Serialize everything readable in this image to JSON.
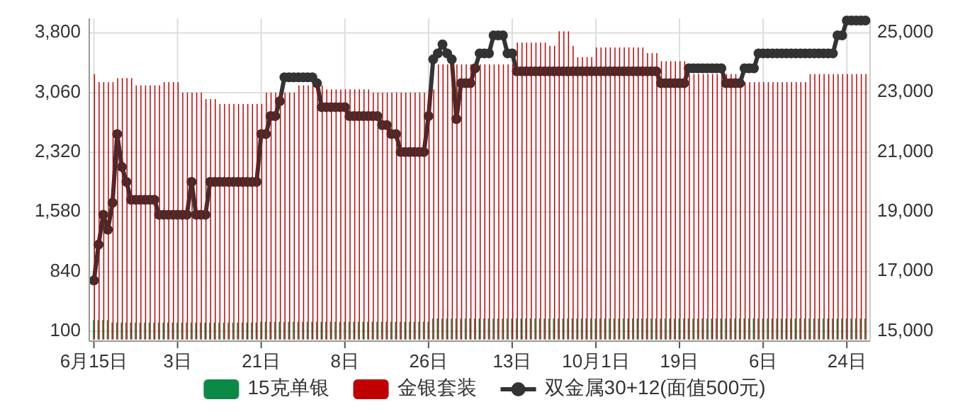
{
  "chart_data": {
    "type": "bar",
    "x": [
      "--06-15",
      "--06-16",
      "--06-17",
      "--06-18",
      "--06-19",
      "--06-20",
      "--06-21",
      "--06-22",
      "--06-23",
      "--06-24",
      "--06-25",
      "--06-26",
      "--06-27",
      "--06-28",
      "--06-29",
      "--06-30",
      "--07-01",
      "--07-02",
      "--07-03",
      "--07-04",
      "--07-05",
      "--07-06",
      "--07-07",
      "--07-08",
      "--07-09",
      "--07-10",
      "--07-11",
      "--07-12",
      "--07-13",
      "--07-14",
      "--07-15",
      "--07-16",
      "--07-17",
      "--07-18",
      "--07-19",
      "--07-20",
      "--07-21",
      "--07-22",
      "--07-23",
      "--07-24",
      "--07-25",
      "--07-26",
      "--07-27",
      "--07-28",
      "--07-29",
      "--07-30",
      "--07-31",
      "--08-01",
      "--08-02",
      "--08-03",
      "--08-04",
      "--08-05",
      "--08-06",
      "--08-07",
      "--08-08",
      "--08-09",
      "--08-10",
      "--08-11",
      "--08-12",
      "--08-13",
      "--08-14",
      "--08-15",
      "--08-16",
      "--08-17",
      "--08-18",
      "--08-19",
      "--08-20",
      "--08-21",
      "--08-22",
      "--08-23",
      "--08-24",
      "--08-25",
      "--08-26",
      "--08-27",
      "--08-28",
      "--08-29",
      "--08-30",
      "--08-31",
      "--09-01",
      "--09-02",
      "--09-03",
      "--09-04",
      "--09-05",
      "--09-06",
      "--09-07",
      "--09-08",
      "--09-09",
      "--09-10",
      "--09-11",
      "--09-12",
      "--09-13",
      "--09-14",
      "--09-15",
      "--09-16",
      "--09-17",
      "--09-18",
      "--09-19",
      "--09-20",
      "--09-21",
      "--09-22",
      "--09-23",
      "--09-24",
      "--09-25",
      "--09-26",
      "--09-27",
      "--09-28",
      "--09-29",
      "--09-30",
      "--10-01",
      "--10-02",
      "--10-03",
      "--10-04",
      "--10-05",
      "--10-06",
      "--10-07",
      "--10-08",
      "--10-09",
      "--10-10",
      "--10-11",
      "--10-12",
      "--10-13",
      "--10-14",
      "--10-15",
      "--10-16",
      "--10-17",
      "--10-18",
      "--10-19",
      "--10-20",
      "--10-21",
      "--10-22",
      "--10-23",
      "--10-24",
      "--10-25",
      "--10-26",
      "--10-27",
      "--10-28",
      "--10-29",
      "--10-30",
      "--10-31",
      "--11-01",
      "--11-02",
      "--11-03",
      "--11-04",
      "--11-05",
      "--11-06",
      "--11-07",
      "--11-08",
      "--11-09",
      "--11-10",
      "--11-11",
      "--11-12",
      "--11-13",
      "--11-14",
      "--11-15",
      "--11-16",
      "--11-17",
      "--11-18",
      "--11-19",
      "--11-20",
      "--11-21",
      "--11-22",
      "--11-23",
      "--11-24",
      "--11-25",
      "--11-26",
      "--11-27",
      "--11-28"
    ],
    "series": [
      {
        "name": "15克单银",
        "color": "#0b8a47",
        "values": [
          240,
          240,
          240,
          240,
          210,
          210,
          210,
          210,
          210,
          210,
          210,
          210,
          210,
          210,
          210,
          210,
          210,
          210,
          210,
          210,
          210,
          210,
          210,
          210,
          210,
          210,
          210,
          210,
          210,
          210,
          210,
          210,
          210,
          210,
          210,
          210,
          220,
          220,
          220,
          220,
          220,
          220,
          220,
          220,
          220,
          220,
          220,
          220,
          220,
          220,
          220,
          220,
          220,
          220,
          220,
          220,
          220,
          220,
          220,
          220,
          220,
          220,
          220,
          220,
          220,
          220,
          220,
          220,
          220,
          220,
          220,
          220,
          220,
          260,
          260,
          260,
          260,
          260,
          260,
          260,
          260,
          260,
          260,
          260,
          260,
          260,
          260,
          260,
          260,
          260,
          260,
          260,
          260,
          260,
          260,
          260,
          260,
          260,
          260,
          260,
          260,
          260,
          260,
          260,
          260,
          260,
          260,
          260,
          260,
          260,
          260,
          260,
          260,
          260,
          260,
          260,
          260,
          260,
          260,
          260,
          260,
          260,
          260,
          260,
          260,
          260,
          260,
          260,
          260,
          260,
          260,
          260,
          260,
          260,
          260,
          260,
          260,
          260,
          260,
          260,
          260,
          260,
          260,
          260,
          260,
          260,
          260,
          260,
          260,
          260,
          260,
          260,
          260,
          260,
          260,
          260,
          260,
          260,
          260,
          260,
          260,
          260,
          260,
          260,
          260,
          260,
          260
        ]
      },
      {
        "name": "金银套装",
        "color": "#c00000",
        "values": [
          3290,
          3190,
          3190,
          3190,
          3190,
          3240,
          3240,
          3240,
          3240,
          3150,
          3150,
          3150,
          3150,
          3150,
          3150,
          3190,
          3190,
          3190,
          3190,
          3060,
          3060,
          3060,
          3060,
          3060,
          2980,
          2980,
          2980,
          2920,
          2920,
          2920,
          2920,
          2920,
          2920,
          2920,
          2920,
          2920,
          2920,
          3060,
          3060,
          3060,
          3060,
          3060,
          3060,
          3060,
          3150,
          3150,
          3150,
          3150,
          3150,
          3150,
          3100,
          3100,
          3100,
          3100,
          3100,
          3100,
          3100,
          3100,
          3100,
          3100,
          3060,
          3060,
          3060,
          3060,
          3060,
          3060,
          3060,
          3060,
          3060,
          3060,
          3060,
          3060,
          3100,
          3100,
          3410,
          3410,
          3410,
          3410,
          3410,
          3410,
          3410,
          3410,
          3410,
          3410,
          3410,
          3410,
          3410,
          3410,
          3410,
          3410,
          3410,
          3680,
          3680,
          3680,
          3680,
          3680,
          3680,
          3680,
          3640,
          3640,
          3820,
          3820,
          3820,
          3640,
          3500,
          3500,
          3500,
          3500,
          3620,
          3620,
          3620,
          3620,
          3620,
          3620,
          3620,
          3620,
          3620,
          3620,
          3620,
          3550,
          3550,
          3550,
          3450,
          3450,
          3450,
          3450,
          3450,
          3450,
          3290,
          3290,
          3290,
          3290,
          3290,
          3290,
          3290,
          3290,
          3290,
          3290,
          3290,
          3190,
          3190,
          3190,
          3190,
          3190,
          3190,
          3190,
          3190,
          3190,
          3190,
          3190,
          3190,
          3190,
          3190,
          3190,
          3290,
          3290,
          3290,
          3290,
          3290,
          3290,
          3290,
          3290,
          3290,
          3290,
          3290,
          3290,
          3290
        ]
      },
      {
        "name": "双金属30+12(面值500元)",
        "type": "line",
        "axis": "y2",
        "color": "#333333",
        "marker": "circle",
        "values": [
          16700,
          17900,
          18900,
          18400,
          19300,
          21600,
          20500,
          20000,
          19400,
          19400,
          19400,
          19400,
          19400,
          19400,
          18900,
          18900,
          18900,
          18900,
          18900,
          18900,
          18900,
          20000,
          18900,
          18900,
          18900,
          20000,
          20000,
          20000,
          20000,
          20000,
          20000,
          20000,
          20000,
          20000,
          20000,
          20000,
          21600,
          21600,
          22200,
          22200,
          22700,
          23500,
          23500,
          23500,
          23500,
          23500,
          23500,
          23500,
          23300,
          22500,
          22500,
          22500,
          22500,
          22500,
          22500,
          22200,
          22200,
          22200,
          22200,
          22200,
          22200,
          22200,
          21900,
          21900,
          21600,
          21600,
          21000,
          21000,
          21000,
          21000,
          21000,
          21000,
          22200,
          24100,
          24300,
          24600,
          24300,
          24100,
          22100,
          23300,
          23300,
          23300,
          23800,
          24300,
          24300,
          24300,
          24900,
          24900,
          24900,
          24300,
          24300,
          23700,
          23700,
          23700,
          23700,
          23700,
          23700,
          23700,
          23700,
          23700,
          23700,
          23700,
          23700,
          23700,
          23700,
          23700,
          23700,
          23700,
          23700,
          23700,
          23700,
          23700,
          23700,
          23700,
          23700,
          23700,
          23700,
          23700,
          23700,
          23700,
          23700,
          23700,
          23300,
          23300,
          23300,
          23300,
          23300,
          23300,
          23800,
          23800,
          23800,
          23800,
          23800,
          23800,
          23800,
          23800,
          23300,
          23300,
          23300,
          23300,
          23800,
          23800,
          23800,
          24300,
          24300,
          24300,
          24300,
          24300,
          24300,
          24300,
          24300,
          24300,
          24300,
          24300,
          24300,
          24300,
          24300,
          24300,
          24300,
          24300,
          24900,
          24900,
          25400,
          25400,
          25400,
          25400,
          25400
        ]
      }
    ],
    "xlim": [
      "--06-14",
      "--11-29"
    ],
    "xticks": [
      {
        "value": "--06-15",
        "label": "6月15日"
      },
      {
        "value": "--07-03",
        "label": "3日"
      },
      {
        "value": "--07-21",
        "label": "21日"
      },
      {
        "value": "--08-08",
        "label": "8日"
      },
      {
        "value": "--08-26",
        "label": "26日"
      },
      {
        "value": "--09-13",
        "label": "13日"
      },
      {
        "value": "--10-01",
        "label": "10月1日"
      },
      {
        "value": "--10-19",
        "label": "19日"
      },
      {
        "value": "--11-06",
        "label": "6日"
      },
      {
        "value": "--11-24",
        "label": "24日"
      }
    ],
    "ylim": [
      -20,
      3980
    ],
    "yticks": [
      100,
      840,
      {
        "value": 1580,
        "label": "1,580"
      },
      {
        "value": 2320,
        "label": "2,320"
      },
      {
        "value": 3060,
        "label": "3,060"
      },
      {
        "value": 3800,
        "label": "3,800"
      }
    ],
    "y2lim": [
      14670,
      25470
    ],
    "y2ticks": [
      {
        "value": 15000,
        "label": "15,000"
      },
      {
        "value": 17000,
        "label": "17,000"
      },
      {
        "value": 19000,
        "label": "19,000"
      },
      {
        "value": 21000,
        "label": "21,000"
      },
      {
        "value": 23000,
        "label": "23,000"
      },
      {
        "value": 25000,
        "label": "25,000"
      }
    ],
    "grid": true,
    "legend": "bottom"
  }
}
